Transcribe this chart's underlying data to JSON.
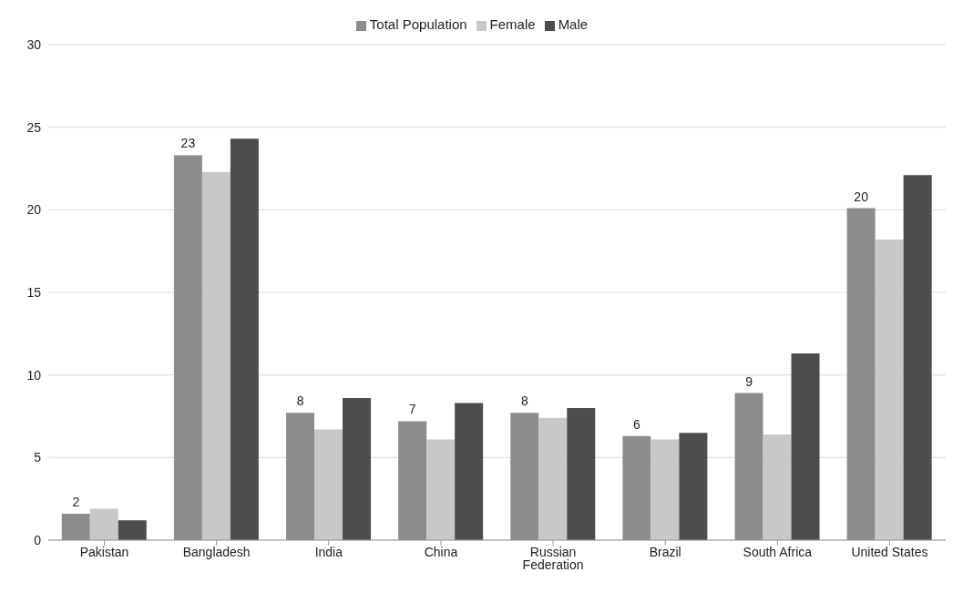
{
  "chart_data": {
    "type": "bar",
    "categories": [
      "Pakistan",
      "Bangladesh",
      "India",
      "China",
      "Russian Federation",
      "Brazil",
      "South Africa",
      "United States"
    ],
    "series": [
      {
        "name": "Total Population",
        "color": "#8c8c8c",
        "values": [
          1.6,
          23.3,
          7.7,
          7.2,
          7.7,
          6.3,
          8.9,
          20.1
        ],
        "value_labels": [
          "2",
          "23",
          "8",
          "7",
          "8",
          "6",
          "9",
          "20"
        ]
      },
      {
        "name": "Female",
        "color": "#c8c8c8",
        "values": [
          1.9,
          22.3,
          6.7,
          6.1,
          7.4,
          6.1,
          6.4,
          18.2
        ]
      },
      {
        "name": "Male",
        "color": "#4d4d4d",
        "values": [
          1.2,
          24.3,
          8.6,
          8.3,
          8.0,
          6.5,
          11.3,
          22.1
        ]
      }
    ],
    "ylim": [
      0,
      30
    ],
    "yticks": [
      0,
      5,
      10,
      15,
      20,
      25,
      30
    ],
    "grid": "y",
    "legend": "top"
  }
}
